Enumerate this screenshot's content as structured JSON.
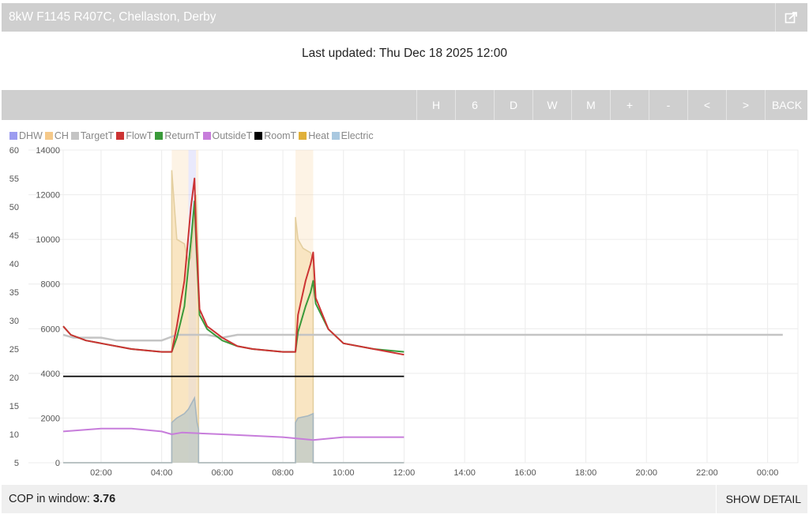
{
  "header": {
    "title": "8kW F1145 R407C, Chellaston, Derby",
    "share_icon": "share-icon"
  },
  "last_updated": "Last updated: Thu Dec 18 2025 12:00",
  "toolbar": {
    "buttons": [
      "H",
      "6",
      "D",
      "W",
      "M",
      "+",
      "-",
      "<",
      ">",
      "BACK"
    ]
  },
  "legend": [
    {
      "name": "DHW",
      "color": "#9c9cf0"
    },
    {
      "name": "CH",
      "color": "#f5c98a"
    },
    {
      "name": "TargetT",
      "color": "#c4c4c4"
    },
    {
      "name": "FlowT",
      "color": "#cc3333"
    },
    {
      "name": "ReturnT",
      "color": "#3a9a3a"
    },
    {
      "name": "OutsideT",
      "color": "#c77ddb"
    },
    {
      "name": "RoomT",
      "color": "#000000"
    },
    {
      "name": "Heat",
      "color": "#e0b03a"
    },
    {
      "name": "Electric",
      "color": "#a9c8e0"
    }
  ],
  "footer": {
    "cop_label": "COP in window: ",
    "cop_value": "3.76",
    "show_detail": "SHOW DETAIL"
  },
  "chart_data": {
    "type": "line",
    "x_range": [
      "00:45",
      "01:00 next day"
    ],
    "x_ticks": [
      "02:00",
      "04:00",
      "06:00",
      "08:00",
      "10:00",
      "12:00",
      "14:00",
      "16:00",
      "18:00",
      "20:00",
      "22:00",
      "00:00"
    ],
    "y_left_ticks": [
      "5",
      "10",
      "15",
      "20",
      "25",
      "30",
      "35",
      "40",
      "45",
      "50",
      "55",
      "60"
    ],
    "y_left_range": [
      5,
      60
    ],
    "y_right_ticks": [
      "0",
      "2000",
      "4000",
      "6000",
      "8000",
      "10000",
      "12000",
      "14000"
    ],
    "y_right_range": [
      0,
      14000
    ],
    "grid": true,
    "legend_position": "top-left",
    "bands": [
      {
        "series": "CH",
        "start": "04:20",
        "end": "04:53"
      },
      {
        "series": "DHW",
        "start": "04:53",
        "end": "05:08"
      },
      {
        "series": "CH",
        "start": "05:08",
        "end": "05:13"
      },
      {
        "series": "CH",
        "start": "08:25",
        "end": "09:00"
      }
    ],
    "series": [
      {
        "name": "TargetT",
        "axis": "left",
        "x": [
          "00:45",
          "01:05",
          "01:30",
          "02:00",
          "02:30",
          "04:00",
          "04:30",
          "05:30",
          "06:00",
          "06:30",
          "24:30"
        ],
        "y": [
          27.5,
          27.0,
          27.0,
          27.0,
          26.5,
          26.5,
          27.5,
          27.5,
          27.0,
          27.5,
          27.5
        ]
      },
      {
        "name": "FlowT",
        "axis": "left",
        "x": [
          "00:45",
          "01:00",
          "01:30",
          "02:00",
          "03:00",
          "04:00",
          "04:20",
          "04:30",
          "04:45",
          "04:58",
          "05:05",
          "05:08",
          "05:15",
          "05:30",
          "06:00",
          "06:30",
          "07:00",
          "08:00",
          "08:25",
          "08:30",
          "08:45",
          "08:55",
          "09:00",
          "09:05",
          "09:30",
          "10:00",
          "11:00",
          "12:00"
        ],
        "y": [
          29,
          27.5,
          26.5,
          26,
          25,
          24.5,
          24.5,
          29,
          37,
          50,
          55,
          46,
          32,
          29,
          27,
          25.5,
          25,
          24.5,
          24.5,
          31,
          37,
          40,
          42,
          34,
          28.5,
          26,
          25,
          24
        ]
      },
      {
        "name": "ReturnT",
        "axis": "left",
        "x": [
          "00:45",
          "01:00",
          "01:30",
          "02:00",
          "03:00",
          "04:00",
          "04:20",
          "04:30",
          "04:45",
          "04:58",
          "05:05",
          "05:08",
          "05:15",
          "05:30",
          "06:00",
          "06:30",
          "07:00",
          "08:00",
          "08:25",
          "08:30",
          "08:45",
          "08:55",
          "09:00",
          "09:05",
          "09:30",
          "10:00",
          "11:00",
          "12:00"
        ],
        "y": [
          29,
          27.5,
          26.5,
          26,
          25,
          24.5,
          24.5,
          27,
          32.5,
          44,
          51,
          44,
          31,
          28.5,
          26.5,
          25.5,
          25,
          24.5,
          24.5,
          28,
          32.5,
          35,
          37,
          33,
          28.5,
          26,
          25,
          24.5
        ]
      },
      {
        "name": "OutsideT",
        "axis": "left",
        "x": [
          "00:45",
          "02:00",
          "03:00",
          "04:00",
          "04:20",
          "04:40",
          "06:00",
          "08:00",
          "09:00",
          "10:00",
          "12:00"
        ],
        "y": [
          10.5,
          11,
          11,
          10.5,
          10,
          10.3,
          10,
          9.5,
          9,
          9.5,
          9.5
        ]
      },
      {
        "name": "RoomT",
        "axis": "left",
        "x": [
          "00:45",
          "12:00"
        ],
        "y": [
          20.2,
          20.2
        ]
      },
      {
        "name": "Heat",
        "axis": "right",
        "x": [
          "00:45",
          "04:20",
          "04:20",
          "04:30",
          "04:45",
          "04:53",
          "04:58",
          "05:08",
          "05:13",
          "05:13",
          "08:25",
          "08:25",
          "08:30",
          "08:40",
          "08:55",
          "09:00",
          "09:00",
          "12:00"
        ],
        "y": [
          0,
          0,
          13100,
          10000,
          9800,
          9000,
          9200,
          12000,
          9000,
          0,
          0,
          11000,
          10000,
          9600,
          9400,
          9000,
          0,
          0
        ]
      },
      {
        "name": "Electric",
        "axis": "right",
        "x": [
          "00:45",
          "04:20",
          "04:20",
          "04:30",
          "04:45",
          "04:53",
          "05:05",
          "05:10",
          "05:13",
          "05:13",
          "08:25",
          "08:25",
          "08:30",
          "08:50",
          "09:00",
          "09:00",
          "12:00"
        ],
        "y": [
          0,
          0,
          1800,
          2000,
          2200,
          2400,
          2900,
          1800,
          1500,
          0,
          0,
          1800,
          2000,
          2100,
          2200,
          0,
          0
        ]
      }
    ]
  }
}
